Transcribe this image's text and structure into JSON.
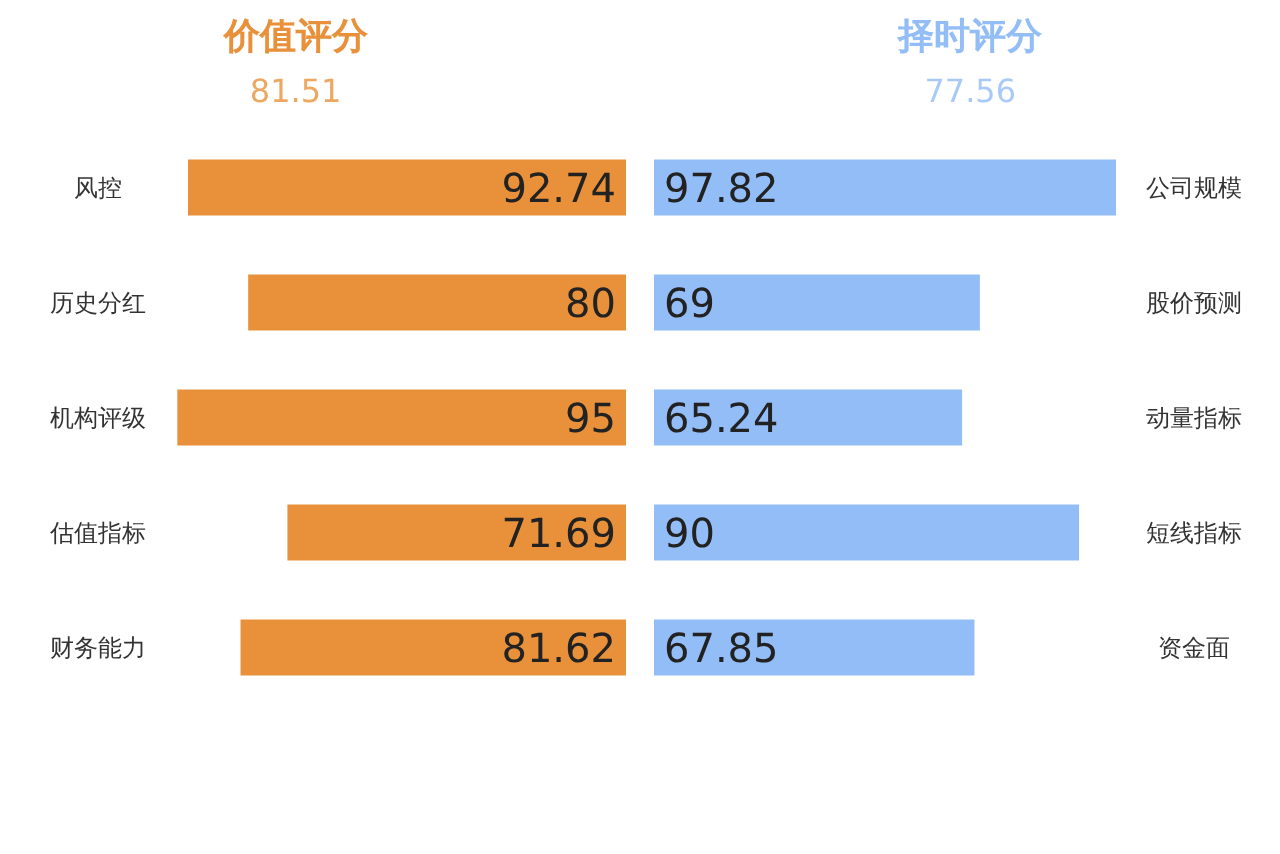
{
  "chart_data": [
    {
      "type": "bar",
      "orientation": "horizontal",
      "title": "价值评分",
      "subtitle": "81.51",
      "categories": [
        "风控",
        "历史分红",
        "机构评级",
        "估值指标",
        "财务能力"
      ],
      "series": [
        {
          "color": "#e8913a",
          "values": [
            92.74,
            80,
            95,
            71.69,
            81.62
          ]
        }
      ],
      "data_labels": true,
      "tick_labels": "y"
    },
    {
      "type": "bar",
      "orientation": "horizontal",
      "title": "择时评分",
      "subtitle": "77.56",
      "categories": [
        "公司规模",
        "股价预测",
        "动量指标",
        "短线指标",
        "资金面"
      ],
      "series": [
        {
          "color": "#93bdf7",
          "values": [
            97.82,
            69,
            65.24,
            90,
            67.85
          ]
        }
      ],
      "data_labels": true,
      "tick_labels": "y"
    }
  ]
}
